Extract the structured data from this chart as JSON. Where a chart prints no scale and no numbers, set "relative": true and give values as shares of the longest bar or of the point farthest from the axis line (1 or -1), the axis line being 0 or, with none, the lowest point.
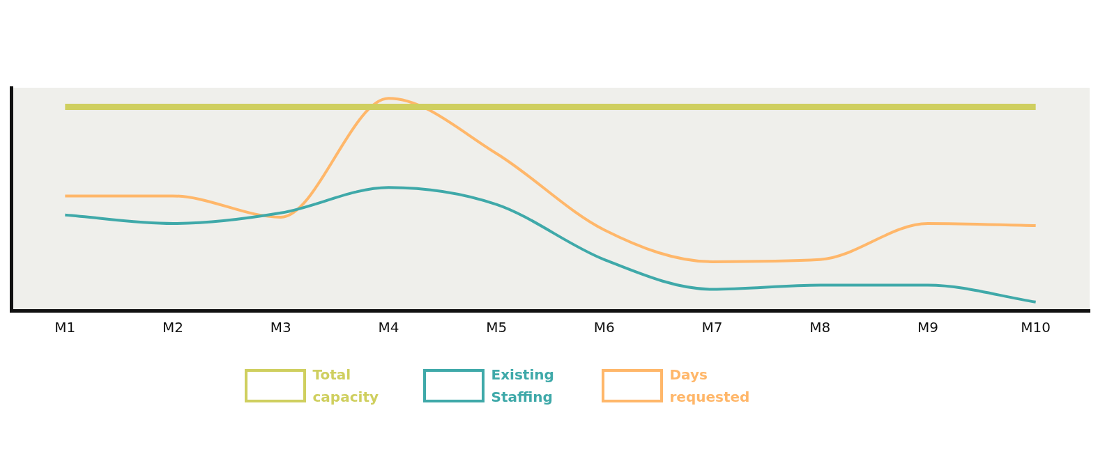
{
  "chart_data": {
    "type": "line",
    "relative": true,
    "categories": [
      "M1",
      "M2",
      "M3",
      "M4",
      "M5",
      "M6",
      "M7",
      "M8",
      "M9",
      "M10"
    ],
    "series": [
      {
        "name": "Total capacity",
        "color": "#cfcf5f",
        "values": [
          0.96,
          0.96,
          0.96,
          0.96,
          0.96,
          0.96,
          0.96,
          0.96,
          0.96,
          0.96
        ]
      },
      {
        "name": "Existing Staffing",
        "color": "#3fa9a9",
        "values": [
          0.45,
          0.41,
          0.46,
          0.58,
          0.5,
          0.24,
          0.1,
          0.12,
          0.12,
          0.04
        ]
      },
      {
        "name": "Days requested",
        "color": "#ffb76a",
        "values": [
          0.54,
          0.54,
          0.44,
          1,
          0.74,
          0.38,
          0.23,
          0.24,
          0.41,
          0.4
        ]
      }
    ],
    "legend": "bottom",
    "grid": false,
    "marker": "none",
    "line_style": "solid"
  }
}
